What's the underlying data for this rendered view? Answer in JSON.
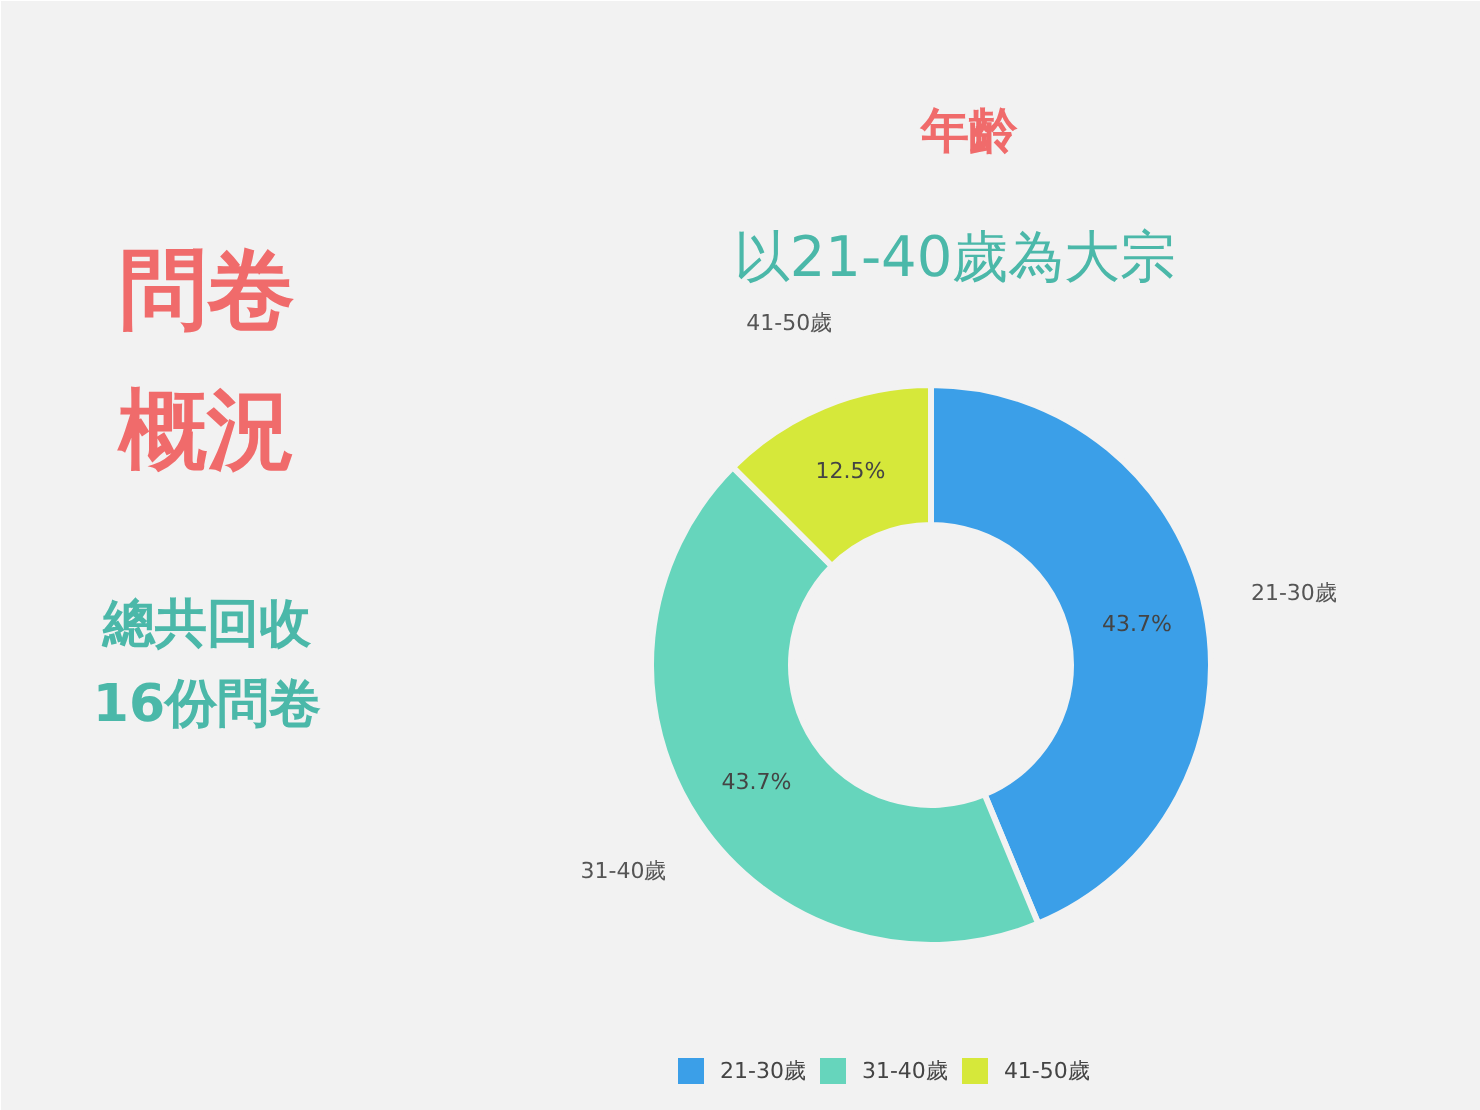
{
  "chart_data": {
    "type": "donut",
    "title": "年齡",
    "subtitle": "以21-40歲為大宗",
    "annotations": [
      "問卷",
      "概況",
      "總共回收",
      "16份問卷"
    ],
    "categories": [
      "21-30歲",
      "31-40歲",
      "41-50歲"
    ],
    "values": [
      43.7,
      43.7,
      12.5
    ],
    "colors": [
      "#3b9fe8",
      "#66d5bc",
      "#d6e83a"
    ],
    "value_labels": [
      "43.7%",
      "43.7%",
      "12.5%"
    ],
    "legend": "bottom"
  }
}
